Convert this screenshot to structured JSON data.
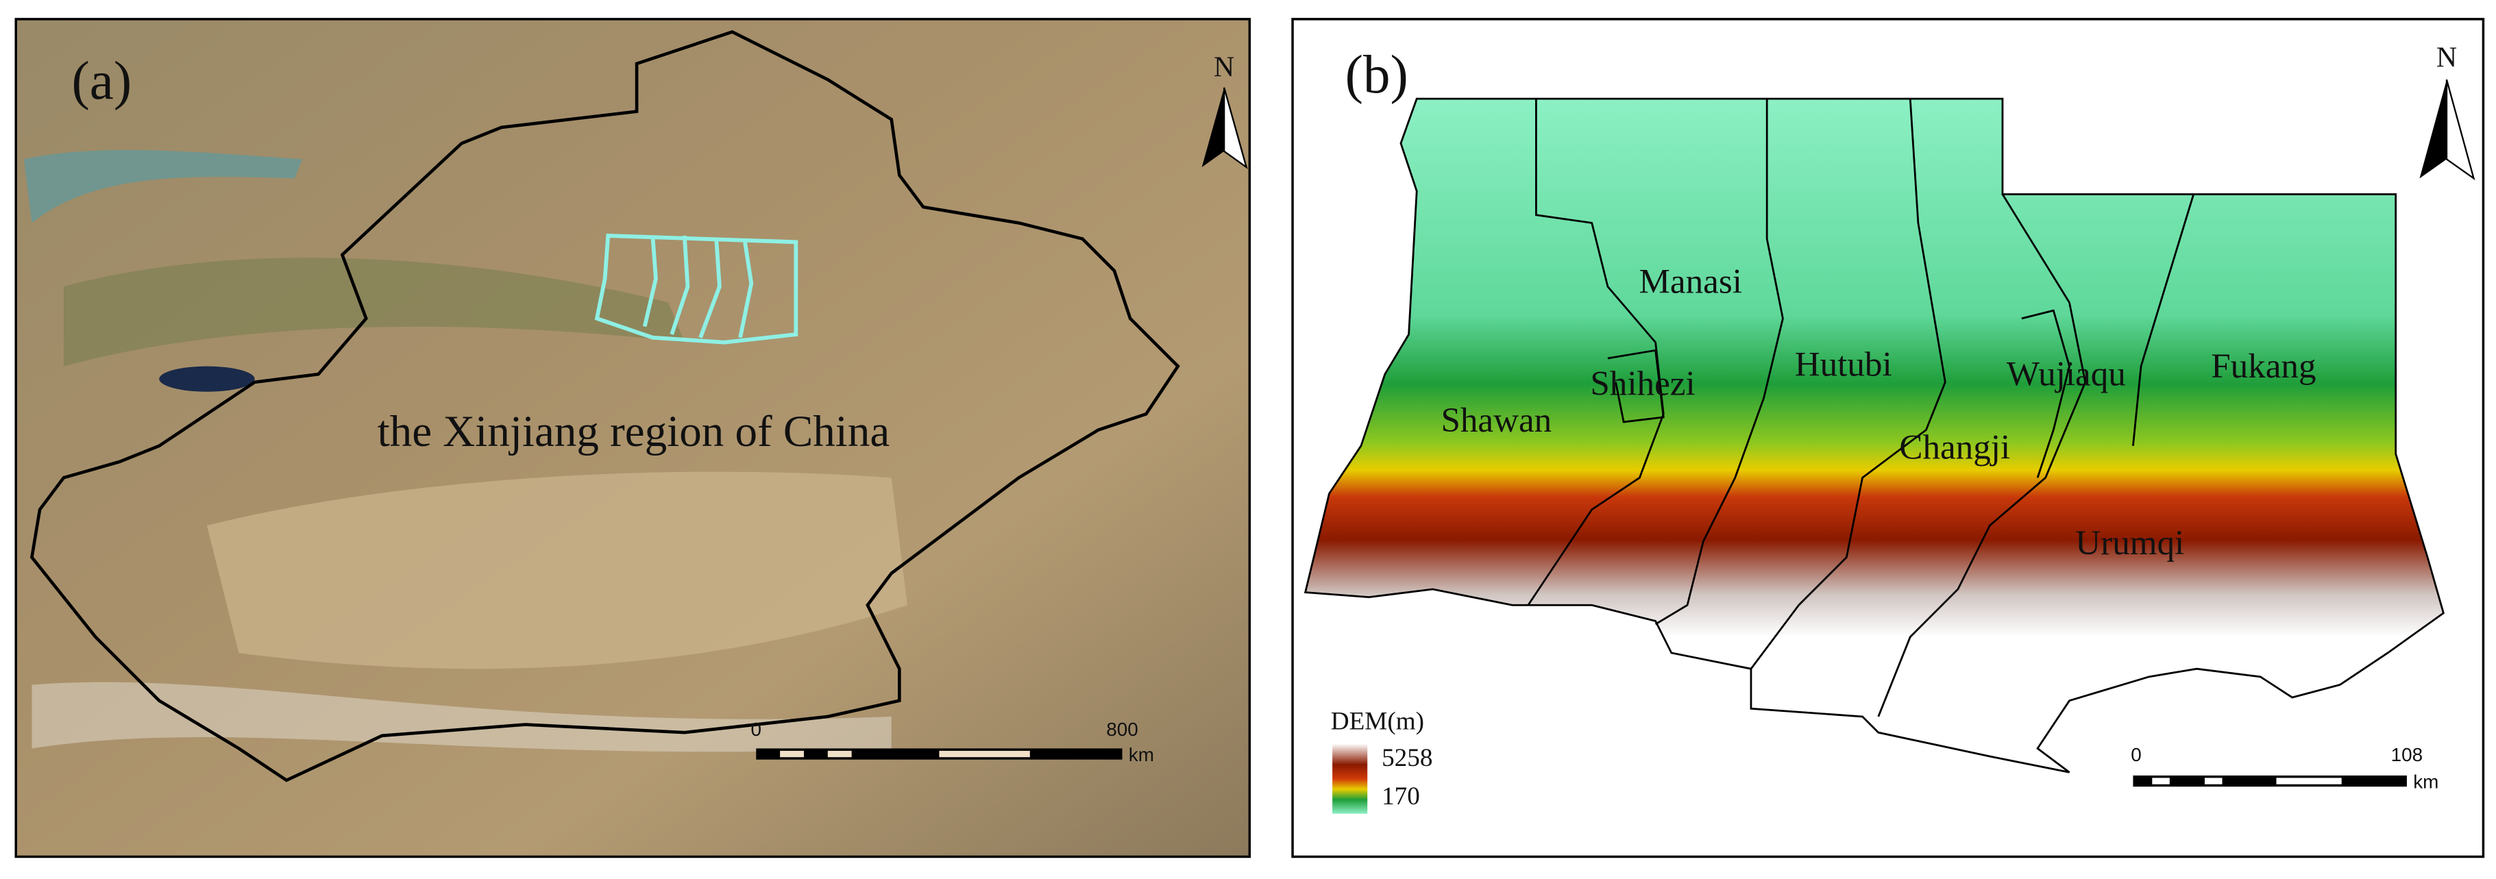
{
  "panels": [
    {
      "label": "(a)",
      "north": "N",
      "region_label": "the Xinjiang region of China",
      "scale_bar": {
        "start": 0,
        "end": 800,
        "unit": "km"
      }
    },
    {
      "label": "(b)",
      "north": "N",
      "counties": [
        "Manasi",
        "Shihezi",
        "Hutubi",
        "Wujiaqu",
        "Fukang",
        "Shawan",
        "Changji",
        "Urumqi"
      ],
      "legend": {
        "title": "DEM(m)",
        "max": 5258,
        "min": 170
      },
      "scale_bar": {
        "start": 0,
        "end": 108,
        "unit": "km"
      }
    }
  ]
}
